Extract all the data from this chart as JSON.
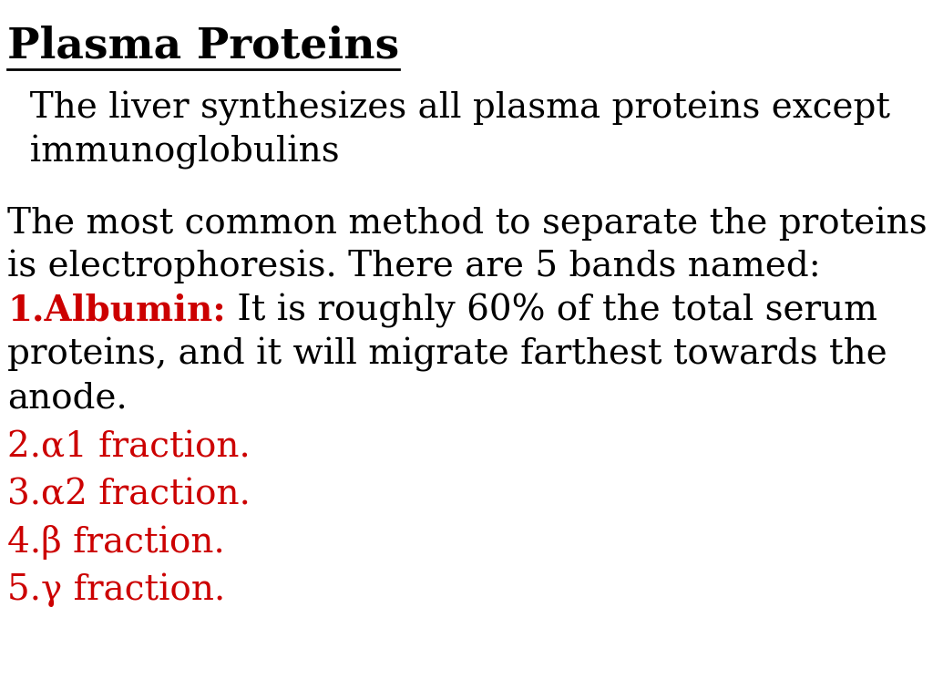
{
  "background_color": "#ffffff",
  "title": "Plasma Proteins",
  "title_color": "#000000",
  "title_fontsize": 34,
  "subtitle_line1": "  The liver synthesizes all plasma proteins except",
  "subtitle_line2": "  immunoglobulins",
  "subtitle_color": "#000000",
  "subtitle_fontsize": 28,
  "body1_line1": "The most common method to separate the proteins",
  "body1_line2": "is electrophoresis. There are 5 bands named:",
  "body1_color": "#000000",
  "body1_fontsize": 28,
  "albumin_label": "1.Albumin:",
  "albumin_rest": " It is roughly 60% of the total serum",
  "albumin_line2": "proteins, and it will migrate farthest towards the",
  "albumin_line3": "anode.",
  "albumin_label_color": "#cc0000",
  "albumin_rest_color": "#000000",
  "albumin_fontsize": 28,
  "list_items": [
    "2.α1 fraction.",
    "3.α2 fraction.",
    "4.β fraction.",
    "5.γ fraction."
  ],
  "list_color": "#cc0000",
  "list_fontsize": 28,
  "fig_width": 10.24,
  "fig_height": 7.68,
  "dpi": 100
}
